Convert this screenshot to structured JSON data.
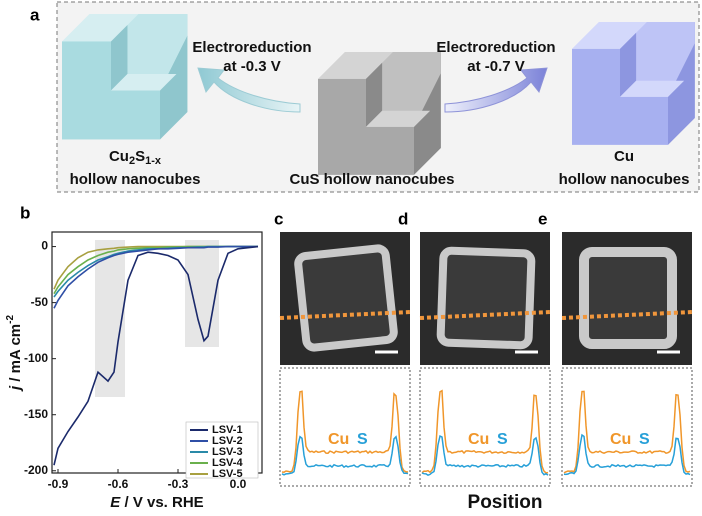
{
  "panel_labels": [
    "a",
    "b",
    "c",
    "d",
    "e"
  ],
  "panel_a": {
    "step1": [
      "Electroreduction",
      "at -0.3 V"
    ],
    "step2": [
      "Electroreduction",
      "at -0.7 V"
    ],
    "left": {
      "formula": [
        "Cu",
        "2",
        "S",
        "1-x"
      ],
      "caption": "hollow nanocubes"
    },
    "center": {
      "caption": "CuS hollow nanocubes"
    },
    "right": {
      "formula": "Cu",
      "caption": "hollow nanocubes"
    }
  },
  "profiles": {
    "element_labels": [
      "Cu",
      "S"
    ],
    "x_label": "Position"
  },
  "chart_data": {
    "type": "line",
    "x_label": {
      "symbol": "E",
      "text": " / V vs. RHE"
    },
    "y_label": {
      "symbol": "j",
      "text": " / mA cm",
      "sup": "-2"
    },
    "x": [
      -0.92,
      -0.9,
      -0.85,
      -0.8,
      -0.75,
      -0.7,
      -0.65,
      -0.62,
      -0.6,
      -0.55,
      -0.5,
      -0.45,
      -0.4,
      -0.35,
      -0.3,
      -0.25,
      -0.2,
      -0.17,
      -0.15,
      -0.1,
      -0.05,
      0,
      0.05,
      0.1
    ],
    "series": [
      {
        "name": "LSV-1",
        "color": "#1b2a6b",
        "values": [
          -195,
          -180,
          -165,
          -152,
          -138,
          -112,
          -120,
          -112,
          -85,
          -30,
          -8,
          -5,
          -6,
          -8,
          -12,
          -25,
          -65,
          -84,
          -80,
          -30,
          -6,
          -2,
          -1,
          0
        ]
      },
      {
        "name": "LSV-2",
        "color": "#2f4fa6",
        "values": [
          -55,
          -48,
          -35,
          -27,
          -20,
          -14,
          -10,
          -8,
          -7,
          -5,
          -4,
          -3,
          -2,
          -2,
          -1.5,
          -1,
          -1,
          -1,
          -0.5,
          -0.5,
          0,
          0,
          0,
          0
        ]
      },
      {
        "name": "LSV-3",
        "color": "#2a8aa8",
        "values": [
          -45,
          -40,
          -30,
          -23,
          -17,
          -12,
          -9,
          -7,
          -6,
          -4,
          -3,
          -2,
          -2,
          -1.5,
          -1,
          -1,
          -0.5,
          -0.5,
          0,
          0,
          0,
          0,
          0,
          0
        ]
      },
      {
        "name": "LSV-4",
        "color": "#6ab04c",
        "values": [
          -42,
          -36,
          -25,
          -18,
          -12,
          -8,
          -5,
          -4,
          -3,
          -2,
          -1.5,
          -1,
          -1,
          -0.5,
          -0.5,
          0,
          0,
          0,
          0,
          0,
          0,
          0,
          0,
          0
        ]
      },
      {
        "name": "LSV-5",
        "color": "#a8a040",
        "values": [
          -38,
          -30,
          -18,
          -10,
          -5,
          -3,
          -2,
          -1.5,
          -1,
          -0.5,
          0,
          0,
          0,
          0,
          0,
          0,
          0,
          0,
          0,
          0,
          0,
          0,
          0,
          0
        ]
      }
    ],
    "xlim": [
      -0.93,
      0.12
    ],
    "ylim": [
      -202,
      13
    ],
    "xticks": [
      -0.9,
      -0.6,
      -0.3,
      {
        "value": 0,
        "label": "0.0"
      }
    ],
    "yticks": [
      0,
      -50,
      -100,
      -150,
      -200
    ],
    "legend": "lower right"
  }
}
